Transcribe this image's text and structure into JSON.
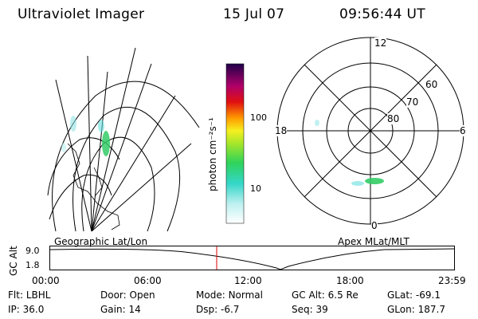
{
  "header": {
    "title": "Ultraviolet Imager",
    "date": "15 Jul 07",
    "time": "09:56:44 UT"
  },
  "panels": {
    "left_label": "Geographic Lat/Lon",
    "right_label": "Apex MLat/MLT"
  },
  "colorbar": {
    "unit_label": "photon cm⁻²s⁻¹",
    "ticks": [
      "100",
      "10"
    ]
  },
  "polar": {
    "mlt_labels": {
      "top": "12",
      "right": "6",
      "bottom": "0",
      "left": "18"
    },
    "lat_labels": [
      "60",
      "70",
      "80"
    ]
  },
  "altitude_plot": {
    "ylabel": "GC Alt",
    "yticks": [
      "9.0",
      "1.8"
    ],
    "xticks": [
      "00:00",
      "06:00",
      "12:00",
      "18:00",
      "23:59"
    ],
    "marker_color": "#dd0000"
  },
  "info": {
    "row1": [
      {
        "k": "Flt:",
        "v": "LBHL"
      },
      {
        "k": "Door:",
        "v": "Open"
      },
      {
        "k": "Mode:",
        "v": "Normal"
      },
      {
        "k": "GC Alt:",
        "v": "6.5 Re"
      },
      {
        "k": "GLat:",
        "v": "-69.1"
      }
    ],
    "row2": [
      {
        "k": "IP:",
        "v": "36.0"
      },
      {
        "k": "Gain:",
        "v": "14"
      },
      {
        "k": "Dsp:",
        "v": "-6.7"
      },
      {
        "k": "Seq:",
        "v": "39"
      },
      {
        "k": "GLon:",
        "v": "187.7"
      }
    ]
  }
}
